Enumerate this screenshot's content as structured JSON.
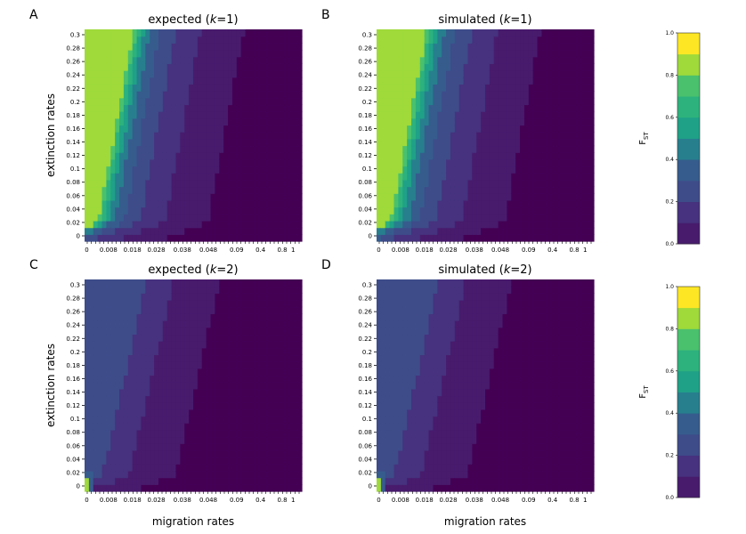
{
  "colors": [
    "#440154",
    "#481b6d",
    "#46327e",
    "#3e4c8a",
    "#365c8d",
    "#277f8e",
    "#1fa187",
    "#2db27d",
    "#4ac16d",
    "#9fda3a",
    "#fde725"
  ],
  "chart_data": [
    {
      "type": "heatmap",
      "letter": "A",
      "title_prefix": "expected (",
      "title_var": "k",
      "title_eq": "=1)",
      "x_ticks": [
        "0",
        "0.008",
        "0.018",
        "0.028",
        "0.038",
        "0.048",
        "0.09",
        "0.4",
        "0.8",
        "1"
      ],
      "y_ticks": [
        "0",
        "0.02",
        "0.04",
        "0.06",
        "0.08",
        "0.1",
        "0.12",
        "0.14",
        "0.16",
        "0.18",
        "0.2",
        "0.22",
        "0.24",
        "0.26",
        "0.28",
        "0.3"
      ],
      "xlabel": "",
      "ylabel": "extinction rates",
      "k": 1,
      "model": {
        "mid": 0.58,
        "decay": 0.42,
        "slope": 0.016,
        "low_row_penalty": 0.55
      }
    },
    {
      "type": "heatmap",
      "letter": "B",
      "title_prefix": "simulated (",
      "title_var": "k",
      "title_eq": "=1)",
      "x_ticks": [
        "0",
        "0.008",
        "0.018",
        "0.028",
        "0.038",
        "0.048",
        "0.09",
        "0.4",
        "0.8",
        "1"
      ],
      "y_ticks": [
        "0",
        "0.02",
        "0.04",
        "0.06",
        "0.08",
        "0.1",
        "0.12",
        "0.14",
        "0.16",
        "0.18",
        "0.2",
        "0.22",
        "0.24",
        "0.26",
        "0.28",
        "0.3"
      ],
      "xlabel": "",
      "ylabel": "",
      "k": 1,
      "model": {
        "mid": 0.62,
        "decay": 0.4,
        "slope": 0.017,
        "low_row_penalty": 0.5
      }
    },
    {
      "type": "heatmap",
      "letter": "C",
      "title_prefix": "expected (",
      "title_var": "k",
      "title_eq": "=2)",
      "x_ticks": [
        "0",
        "0.008",
        "0.018",
        "0.028",
        "0.038",
        "0.048",
        "0.09",
        "0.4",
        "0.8",
        "1"
      ],
      "y_ticks": [
        "0",
        "0.02",
        "0.04",
        "0.06",
        "0.08",
        "0.1",
        "0.12",
        "0.14",
        "0.16",
        "0.18",
        "0.2",
        "0.22",
        "0.24",
        "0.26",
        "0.28",
        "0.3"
      ],
      "xlabel": "migration rates",
      "ylabel": "extinction rates",
      "k": 2,
      "model": {
        "mid": 0.3,
        "decay": 0.18,
        "slope": 0.01,
        "low_row_penalty": 0.2
      }
    },
    {
      "type": "heatmap",
      "letter": "D",
      "title_prefix": "simulated (",
      "title_var": "k",
      "title_eq": "=2)",
      "x_ticks": [
        "0",
        "0.008",
        "0.018",
        "0.028",
        "0.038",
        "0.048",
        "0.09",
        "0.4",
        "0.8",
        "1"
      ],
      "y_ticks": [
        "0",
        "0.02",
        "0.04",
        "0.06",
        "0.08",
        "0.1",
        "0.12",
        "0.14",
        "0.16",
        "0.18",
        "0.2",
        "0.22",
        "0.24",
        "0.26",
        "0.28",
        "0.3"
      ],
      "xlabel": "migration rates",
      "ylabel": "",
      "k": 2,
      "model": {
        "mid": 0.3,
        "decay": 0.18,
        "slope": 0.01,
        "low_row_penalty": 0.2
      }
    }
  ],
  "colorbars": [
    {
      "label_main": "F",
      "label_sub": "ST",
      "ticks": [
        "0.0",
        "0.2",
        "0.4",
        "0.6",
        "0.8",
        "1.0"
      ],
      "range": [
        0,
        1
      ],
      "levels": 10
    },
    {
      "label_main": "F",
      "label_sub": "ST",
      "ticks": [
        "0.0",
        "0.2",
        "0.4",
        "0.6",
        "0.8",
        "1.0"
      ],
      "range": [
        0,
        1
      ],
      "levels": 10
    }
  ]
}
